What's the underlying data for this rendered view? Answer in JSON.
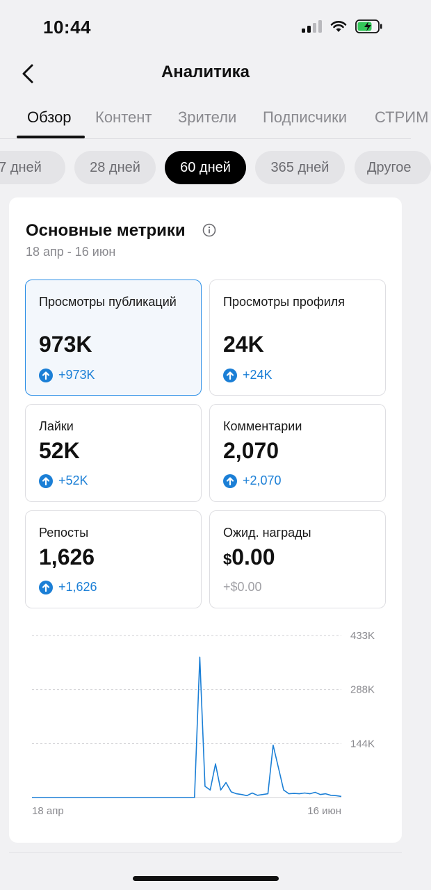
{
  "status_bar": {
    "time": "10:44"
  },
  "header": {
    "title": "Аналитика"
  },
  "tabs": [
    {
      "label": "Обзор",
      "active": true
    },
    {
      "label": "Контент"
    },
    {
      "label": "Зрители"
    },
    {
      "label": "Подписчики"
    },
    {
      "label": "СТРИМ"
    }
  ],
  "periods": [
    {
      "label": "7 дней"
    },
    {
      "label": "28 дней"
    },
    {
      "label": "60 дней",
      "active": true
    },
    {
      "label": "365 дней"
    },
    {
      "label": "Другое"
    }
  ],
  "metrics_card": {
    "title": "Основные метрики",
    "date_range": "18 апр - 16 июн",
    "items": [
      {
        "label": "Просмотры публикаций",
        "value": "973K",
        "delta": "+973K",
        "selected": true
      },
      {
        "label": "Просмотры профиля",
        "value": "24K",
        "delta": "+24K"
      },
      {
        "label": "Лайки",
        "value": "52K",
        "delta": "+52K"
      },
      {
        "label": "Комментарии",
        "value": "2,070",
        "delta": "+2,070"
      },
      {
        "label": "Репосты",
        "value": "1,626",
        "delta": "+1,626"
      },
      {
        "label": "Ожид. награды",
        "currency": "$",
        "value": "0.00",
        "delta": "+$0.00"
      }
    ]
  },
  "chart_data": {
    "type": "line",
    "x_tick_labels": [
      "18 апр",
      "16 июн"
    ],
    "y_tick_labels": [
      "433K",
      "288K",
      "144K"
    ],
    "ylim": [
      0,
      433000
    ],
    "grid": true,
    "color": "#1b7fd6",
    "series": [
      {
        "values": [
          0,
          0,
          0,
          0,
          0,
          0,
          0,
          0,
          0,
          0,
          0,
          0,
          0,
          0,
          0,
          0,
          0,
          0,
          0,
          0,
          0,
          0,
          0,
          0,
          0,
          0,
          0,
          0,
          0,
          0,
          0,
          0,
          375000,
          30000,
          20000,
          90000,
          20000,
          40000,
          15000,
          10000,
          8000,
          5000,
          12000,
          6000,
          8000,
          10000,
          140000,
          80000,
          20000,
          10000,
          11000,
          10000,
          12000,
          10000,
          14000,
          8000,
          10000,
          6000,
          5000,
          3000
        ]
      }
    ]
  }
}
